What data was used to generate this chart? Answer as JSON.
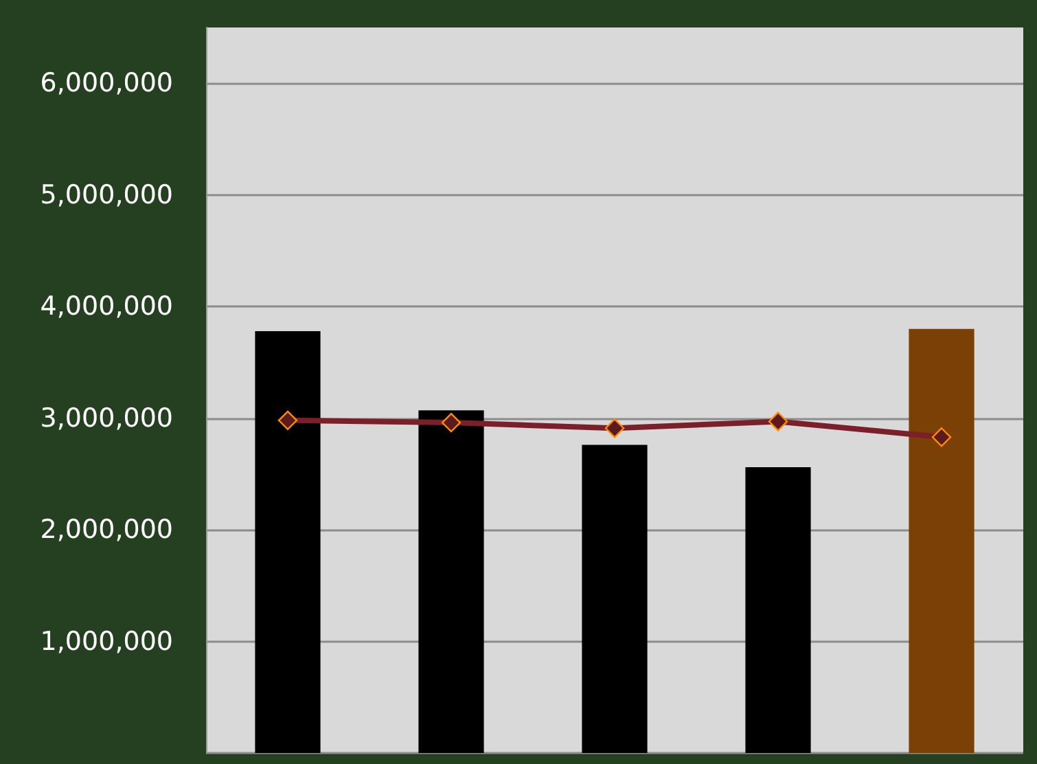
{
  "chart_data": {
    "type": "bar",
    "categories": [
      null,
      null,
      null,
      null,
      null
    ],
    "series": [
      {
        "colors": [
          "#000000",
          "#000000",
          "#000000",
          "#000000",
          "#7a4005"
        ],
        "values": [
          3780000,
          3070000,
          2760000,
          2560000,
          3800000
        ]
      },
      {
        "type": "line",
        "color": "#7b1f2a",
        "values": [
          2980000,
          2960000,
          2910000,
          2970000,
          2830000
        ]
      }
    ],
    "ylim": [
      0,
      6500000
    ],
    "yticks": [
      {
        "value": 0,
        "label": null
      },
      {
        "value": 1000000,
        "label": "1,000,000"
      },
      {
        "value": 2000000,
        "label": "2,000,000"
      },
      {
        "value": 3000000,
        "label": "3,000,000"
      },
      {
        "value": 4000000,
        "label": "4,000,000"
      },
      {
        "value": 5000000,
        "label": "5,000,000"
      },
      {
        "value": 6000000,
        "label": "6,000,000"
      }
    ],
    "grid": "y",
    "marker": "diamond",
    "line_style": "solid"
  }
}
